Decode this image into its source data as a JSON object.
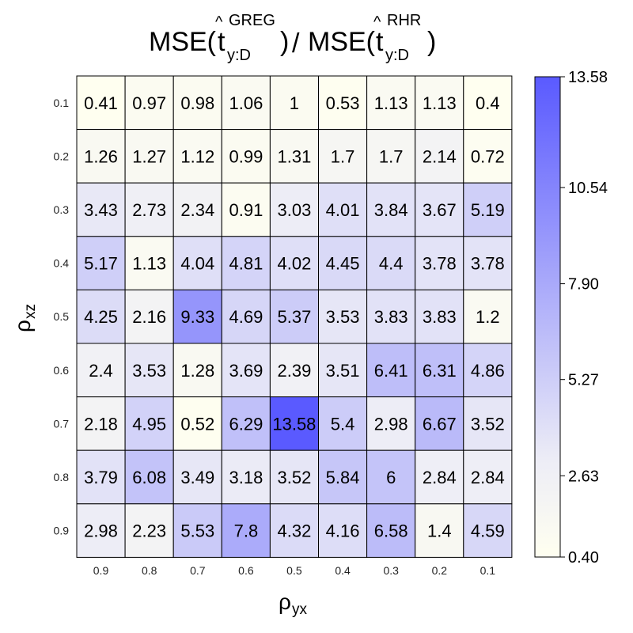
{
  "chart_data": {
    "type": "heatmap",
    "title": {
      "numerator": {
        "prefix": "MSE(",
        "symbol": "t",
        "hat": "^",
        "superscript": "GREG",
        "subscript": "y:D",
        "suffix": ")"
      },
      "divider": "/",
      "denominator": {
        "prefix": "MSE(",
        "symbol": "t",
        "hat": "^",
        "superscript": "RHR",
        "subscript": "y:D",
        "suffix": ")"
      }
    },
    "xlabel": {
      "symbol": "ρ",
      "subscript": "yx"
    },
    "ylabel": {
      "symbol": "ρ",
      "subscript": "xz"
    },
    "x_categories": [
      "0.9",
      "0.8",
      "0.7",
      "0.6",
      "0.5",
      "0.4",
      "0.3",
      "0.2",
      "0.1"
    ],
    "y_categories": [
      "0.1",
      "0.2",
      "0.3",
      "0.4",
      "0.5",
      "0.6",
      "0.7",
      "0.8",
      "0.9"
    ],
    "values": [
      [
        0.41,
        0.97,
        0.98,
        1.06,
        1,
        0.53,
        1.13,
        1.13,
        0.4
      ],
      [
        1.26,
        1.27,
        1.12,
        0.99,
        1.31,
        1.7,
        1.7,
        2.14,
        0.72
      ],
      [
        3.43,
        2.73,
        2.34,
        0.91,
        3.03,
        4.01,
        3.84,
        3.67,
        5.19
      ],
      [
        5.17,
        1.13,
        4.04,
        4.81,
        4.02,
        4.45,
        4.4,
        3.78,
        3.78
      ],
      [
        4.25,
        2.16,
        9.33,
        4.69,
        5.37,
        3.53,
        3.83,
        3.83,
        1.2
      ],
      [
        2.4,
        3.53,
        1.28,
        3.69,
        2.39,
        3.51,
        6.41,
        6.31,
        4.86
      ],
      [
        2.18,
        4.95,
        0.52,
        6.29,
        13.58,
        5.4,
        2.98,
        6.67,
        3.52
      ],
      [
        3.79,
        6.08,
        3.49,
        3.18,
        3.52,
        5.84,
        6,
        2.84,
        2.84
      ],
      [
        2.98,
        2.23,
        5.53,
        7.8,
        4.32,
        4.16,
        6.58,
        1.4,
        4.59
      ]
    ],
    "colorbar": {
      "min": 0.4,
      "max": 13.58,
      "ticks": [
        "0.40",
        "2.63",
        "5.27",
        "7.90",
        "10.54",
        "13.58"
      ],
      "tick_values": [
        0.4,
        2.63,
        5.27,
        7.9,
        10.54,
        13.58
      ],
      "colors": [
        "#fffff0",
        "#ededf6",
        "#5a5aff"
      ]
    },
    "grid": true,
    "legend_position": "right"
  }
}
